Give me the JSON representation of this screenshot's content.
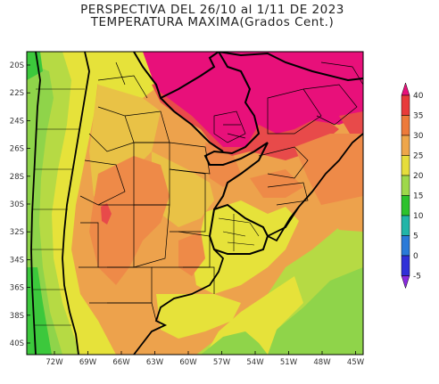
{
  "title": {
    "line1": "PERSPECTIVA DEL 26/10 al 1/11 DE 2023",
    "line2": "TEMPERATURA MAXIMA(Grados Cent.)"
  },
  "axes": {
    "y_labels": [
      "20S",
      "22S",
      "24S",
      "26S",
      "28S",
      "30S",
      "32S",
      "34S",
      "36S",
      "38S",
      "40S"
    ],
    "x_labels": [
      "72W",
      "69W",
      "66W",
      "63W",
      "60W",
      "57W",
      "54W",
      "51W",
      "48W",
      "45W"
    ]
  },
  "colorbar": {
    "labels": [
      "40",
      "35",
      "30",
      "25",
      "20",
      "15",
      "10",
      "5",
      "0",
      "-5"
    ],
    "colors": [
      "#e8107a",
      "#e83a3a",
      "#ed7a3a",
      "#eea64a",
      "#e6dd3c",
      "#9ed84a",
      "#2cc22c",
      "#21b5a8",
      "#2a7ad8",
      "#3030d8",
      "#8a2ae0"
    ]
  },
  "palette": {
    "t40": "#e8107a",
    "t35": "#e84a4a",
    "t30": "#ee8a48",
    "t27": "#eda24c",
    "t25": "#e9c246",
    "t20": "#e6e23a",
    "t17": "#b6da44",
    "t15": "#8fd44a",
    "t12": "#3cc83c",
    "border": "#000000"
  }
}
